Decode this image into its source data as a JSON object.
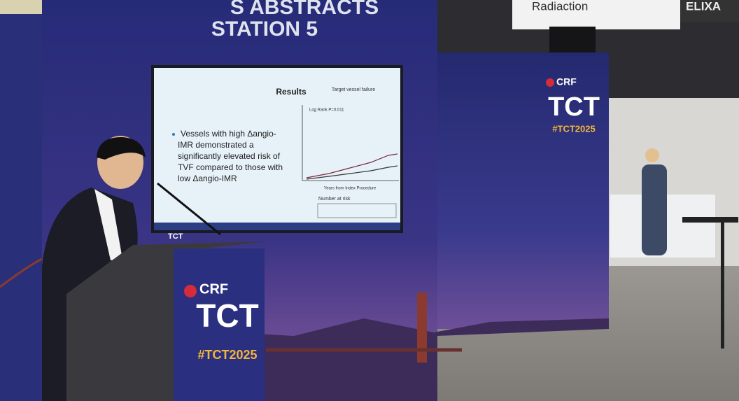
{
  "backdrop": {
    "heading_line1": "S ABSTRACTS",
    "heading_line2": "STATION 5"
  },
  "slide": {
    "title": "Results",
    "chart_title": "Target vessel failure",
    "bullet_lines": [
      "Vessels with high Δangio-",
      "IMR demonstrated a",
      "significantly elevated risk of",
      "TVF compared to those with",
      "low Δangio-IMR"
    ],
    "stat_line": "Log Rank P=0.011",
    "x_label": "Years from Index Procedure",
    "risk_title": "Number at risk",
    "logo": "TCT"
  },
  "podium": {
    "brand": "CRF",
    "event": "TCT",
    "hashtag": "#TCT2025"
  },
  "booth_panel": {
    "brand": "CRF",
    "event": "TCT",
    "hashtag": "#TCT2025"
  },
  "signs": {
    "left": "Radiaction",
    "right": "ELIXA"
  }
}
